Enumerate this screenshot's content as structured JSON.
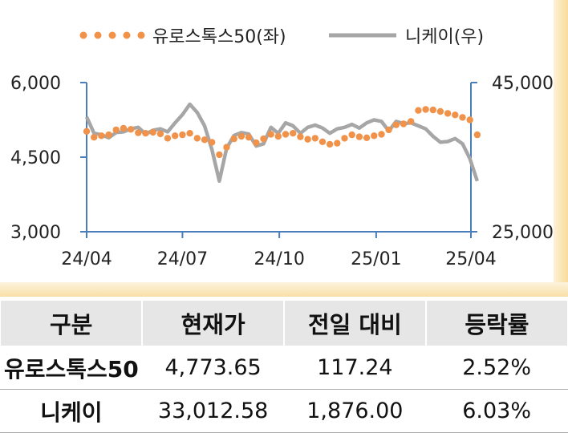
{
  "chart_data": {
    "type": "line",
    "legend": [
      {
        "name": "유로스톡스50(좌)",
        "color": "#f0924a",
        "style": "dotted"
      },
      {
        "name": "니케이(우)",
        "color": "#a6a6a6",
        "style": "solid"
      }
    ],
    "legend_position": "top",
    "x_tick_labels": [
      "24/04",
      "24/07",
      "24/10",
      "25/01",
      "25/04"
    ],
    "x_ticks": [
      "2024-04",
      "2024-07",
      "2024-10",
      "2025-01",
      "2025-04"
    ],
    "x_range": [
      "2024-04",
      "2025-04"
    ],
    "y_left": {
      "ticks": [
        3000,
        4500,
        6000
      ],
      "tick_labels": [
        "3,000",
        "4,500",
        "6,000"
      ],
      "range": [
        3000,
        6000
      ]
    },
    "y_right": {
      "ticks": [
        25000,
        45000
      ],
      "tick_labels": [
        "25,000",
        "45,000"
      ],
      "range": [
        25000,
        45000
      ]
    },
    "grid": false,
    "series": [
      {
        "name": "유로스톡스50(좌)",
        "axis": "left",
        "color": "#f0924a",
        "x": [
          "2024-04-01",
          "2024-04-08",
          "2024-04-15",
          "2024-04-22",
          "2024-04-29",
          "2024-05-06",
          "2024-05-13",
          "2024-05-20",
          "2024-05-27",
          "2024-06-03",
          "2024-06-10",
          "2024-06-17",
          "2024-06-24",
          "2024-07-01",
          "2024-07-08",
          "2024-07-15",
          "2024-07-22",
          "2024-07-29",
          "2024-08-05",
          "2024-08-12",
          "2024-08-19",
          "2024-08-26",
          "2024-09-02",
          "2024-09-09",
          "2024-09-16",
          "2024-09-23",
          "2024-09-30",
          "2024-10-07",
          "2024-10-14",
          "2024-10-21",
          "2024-10-28",
          "2024-11-04",
          "2024-11-11",
          "2024-11-18",
          "2024-11-25",
          "2024-12-02",
          "2024-12-09",
          "2024-12-16",
          "2024-12-23",
          "2024-12-30",
          "2025-01-06",
          "2025-01-13",
          "2025-01-20",
          "2025-01-27",
          "2025-02-03",
          "2025-02-10",
          "2025-02-17",
          "2025-02-24",
          "2025-03-03",
          "2025-03-10",
          "2025-03-17",
          "2025-03-24",
          "2025-03-31",
          "2025-04-07"
        ],
        "values": [
          5020,
          4900,
          4930,
          4950,
          5050,
          5080,
          5060,
          4990,
          4980,
          5000,
          4970,
          4880,
          4930,
          4950,
          4980,
          4880,
          4850,
          4800,
          4550,
          4700,
          4870,
          4920,
          4900,
          4790,
          4870,
          4960,
          4920,
          4960,
          4980,
          4910,
          4860,
          4880,
          4810,
          4760,
          4780,
          4880,
          4950,
          4910,
          4890,
          4930,
          4960,
          5050,
          5150,
          5170,
          5220,
          5440,
          5460,
          5450,
          5420,
          5380,
          5350,
          5300,
          5250,
          4950
        ]
      },
      {
        "name": "니케이(우)",
        "axis": "right",
        "color": "#a6a6a6",
        "x": [
          "2024-04-01",
          "2024-04-08",
          "2024-04-15",
          "2024-04-22",
          "2024-04-29",
          "2024-05-06",
          "2024-05-13",
          "2024-05-20",
          "2024-05-27",
          "2024-06-03",
          "2024-06-10",
          "2024-06-17",
          "2024-06-24",
          "2024-07-01",
          "2024-07-08",
          "2024-07-15",
          "2024-07-22",
          "2024-07-29",
          "2024-08-05",
          "2024-08-12",
          "2024-08-19",
          "2024-08-26",
          "2024-09-02",
          "2024-09-09",
          "2024-09-16",
          "2024-09-23",
          "2024-09-30",
          "2024-10-07",
          "2024-10-14",
          "2024-10-21",
          "2024-10-28",
          "2024-11-04",
          "2024-11-11",
          "2024-11-18",
          "2024-11-25",
          "2024-12-02",
          "2024-12-09",
          "2024-12-16",
          "2024-12-23",
          "2024-12-30",
          "2025-01-06",
          "2025-01-13",
          "2025-01-20",
          "2025-01-27",
          "2025-02-03",
          "2025-02-10",
          "2025-02-17",
          "2025-02-24",
          "2025-03-03",
          "2025-03-10",
          "2025-03-17",
          "2025-03-24",
          "2025-03-31",
          "2025-04-07"
        ],
        "values": [
          40400,
          38200,
          38000,
          37600,
          38300,
          38400,
          38800,
          39000,
          38100,
          38600,
          38800,
          38400,
          39600,
          40700,
          42100,
          41000,
          39200,
          36000,
          31800,
          36200,
          37900,
          38300,
          38100,
          36500,
          36800,
          39000,
          38200,
          39600,
          39200,
          38200,
          39000,
          39300,
          38900,
          38200,
          38800,
          39000,
          39400,
          38900,
          39600,
          40000,
          39800,
          38500,
          39800,
          39500,
          39600,
          39200,
          38800,
          37800,
          37000,
          37100,
          37500,
          36800,
          34800,
          31800
        ]
      }
    ]
  },
  "table": {
    "headers": [
      "구분",
      "현재가",
      "전일 대비",
      "등락률"
    ],
    "rows": [
      {
        "name": "유로스톡스50",
        "price": "4,773.65",
        "change": "117.24",
        "rate": "2.52%"
      },
      {
        "name": "니케이",
        "price": "33,012.58",
        "change": "1,876.00",
        "rate": "6.03%"
      }
    ]
  }
}
